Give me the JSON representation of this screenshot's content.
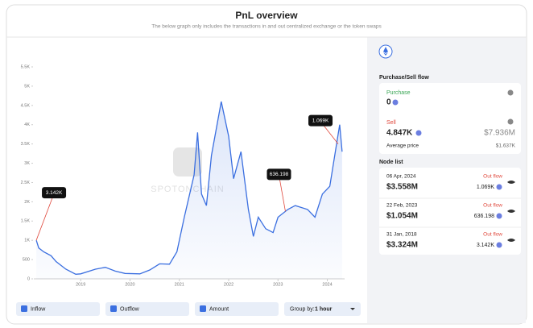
{
  "header": {
    "title": "PnL overview",
    "subtitle": "The below graph only includes the transactions in and out centralized exchange or the token swaps"
  },
  "chart": {
    "type": "line",
    "watermark": "SPOTONCHAIN",
    "color": "#3b6fe0",
    "x": [
      2018.1,
      2018.15,
      2018.25,
      2018.4,
      2018.5,
      2018.7,
      2018.9,
      2019.0,
      2019.3,
      2019.5,
      2019.7,
      2019.9,
      2020.2,
      2020.4,
      2020.6,
      2020.8,
      2020.95,
      2021.1,
      2021.3,
      2021.37,
      2021.45,
      2021.55,
      2021.65,
      2021.85,
      2022.0,
      2022.1,
      2022.25,
      2022.4,
      2022.5,
      2022.6,
      2022.75,
      2022.9,
      2023.0,
      2023.2,
      2023.35,
      2023.6,
      2023.75,
      2023.9,
      2024.05,
      2024.2,
      2024.25,
      2024.3
    ],
    "values": [
      1000,
      800,
      700,
      600,
      450,
      250,
      120,
      130,
      250,
      300,
      200,
      140,
      130,
      230,
      390,
      380,
      700,
      1600,
      2700,
      3800,
      2200,
      1900,
      3200,
      4600,
      3700,
      2600,
      3300,
      1800,
      1100,
      1600,
      1300,
      1200,
      1600,
      1800,
      1900,
      1800,
      1600,
      2200,
      2400,
      3600,
      4000,
      3300
    ],
    "xlim": [
      2018.05,
      2024.35
    ],
    "xticks": [
      2019,
      2020,
      2021,
      2022,
      2023,
      2024
    ],
    "ylim": [
      0,
      5500
    ],
    "yticks": [
      0,
      500,
      {
        "value": 1000,
        "label": "1K"
      },
      {
        "value": 1500,
        "label": "1.5K"
      },
      {
        "value": 2000,
        "label": "2K"
      },
      {
        "value": 2500,
        "label": "2.5K"
      },
      {
        "value": 3000,
        "label": "3K"
      },
      {
        "value": 3500,
        "label": "3.5K"
      },
      {
        "value": 4000,
        "label": "4K"
      },
      {
        "value": 4500,
        "label": "4.5K"
      },
      {
        "value": 5000,
        "label": "5K"
      },
      {
        "value": 5500,
        "label": "5.5K"
      }
    ],
    "annotations": [
      {
        "label": "3.142K",
        "x": 2018.1,
        "y": 1000
      },
      {
        "label": "636.198",
        "x": 2023.15,
        "y": 1750
      },
      {
        "label": "1.069K",
        "x": 2024.22,
        "y": 3500
      }
    ]
  },
  "controls": {
    "inflow": "Inflow",
    "outflow": "Outflow",
    "amount": "Amount",
    "group_by": "Group by:",
    "group_value": "1 hour"
  },
  "panel": {
    "flow_title": "Purchase/Sell flow",
    "purchase_label": "Purchase",
    "purchase_value": "0",
    "sell_label": "Sell",
    "sell_value": "4.847K",
    "sell_usd": "$7.936M",
    "avg_label": "Average price",
    "avg_value": "$1.637K",
    "node_title": "Node list",
    "nodes": [
      {
        "date": "06 Apr, 2024",
        "flow": "Out flow",
        "usd": "$3.558M",
        "amount": "1.069K"
      },
      {
        "date": "22 Feb, 2023",
        "flow": "Out flow",
        "usd": "$1.054M",
        "amount": "636.198"
      },
      {
        "date": "31 Jan, 2018",
        "flow": "Out flow",
        "usd": "$3.324M",
        "amount": "3.142K"
      }
    ]
  }
}
